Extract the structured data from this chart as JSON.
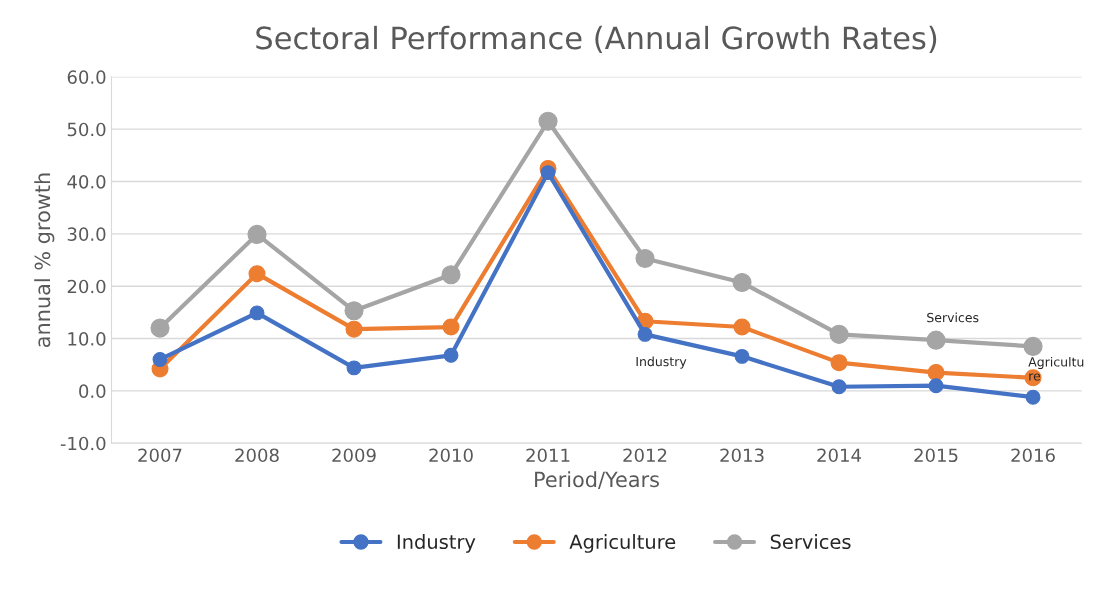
{
  "chart_data": {
    "type": "line",
    "title": "Sectoral Performance (Annual Growth Rates)",
    "xlabel": "Period/Years",
    "ylabel": "annual % growth",
    "categories": [
      "2007",
      "2008",
      "2009",
      "2010",
      "2011",
      "2012",
      "2013",
      "2014",
      "2015",
      "2016"
    ],
    "series": [
      {
        "name": "Industry",
        "color": "#4472c4",
        "values": [
          6.0,
          14.9,
          4.4,
          6.8,
          41.7,
          10.8,
          6.6,
          0.8,
          1.0,
          -1.2
        ]
      },
      {
        "name": "Agriculture",
        "color": "#ed7d31",
        "values": [
          4.2,
          22.4,
          11.8,
          12.2,
          42.5,
          13.3,
          12.2,
          5.4,
          3.5,
          2.5
        ]
      },
      {
        "name": "Services",
        "color": "#a5a5a5",
        "values": [
          12.0,
          29.9,
          15.3,
          22.2,
          51.5,
          25.3,
          20.7,
          10.8,
          9.7,
          8.5
        ]
      }
    ],
    "ylim": [
      -10,
      60
    ],
    "yticks": [
      {
        "value": -10,
        "label": "-10.0"
      },
      {
        "value": 0,
        "label": "0.0"
      },
      {
        "value": 10,
        "label": "10.0"
      },
      {
        "value": 20,
        "label": "20.0"
      },
      {
        "value": 30,
        "label": "30.0"
      },
      {
        "value": 40,
        "label": "40.0"
      },
      {
        "value": 50,
        "label": "50.0"
      },
      {
        "value": 60,
        "label": "60.0"
      }
    ],
    "annotations": [
      "Industry",
      "Services",
      "Agricultu\nre"
    ],
    "grid": "y",
    "legend": "bottom",
    "marker": "circle",
    "line_style": "solid"
  }
}
